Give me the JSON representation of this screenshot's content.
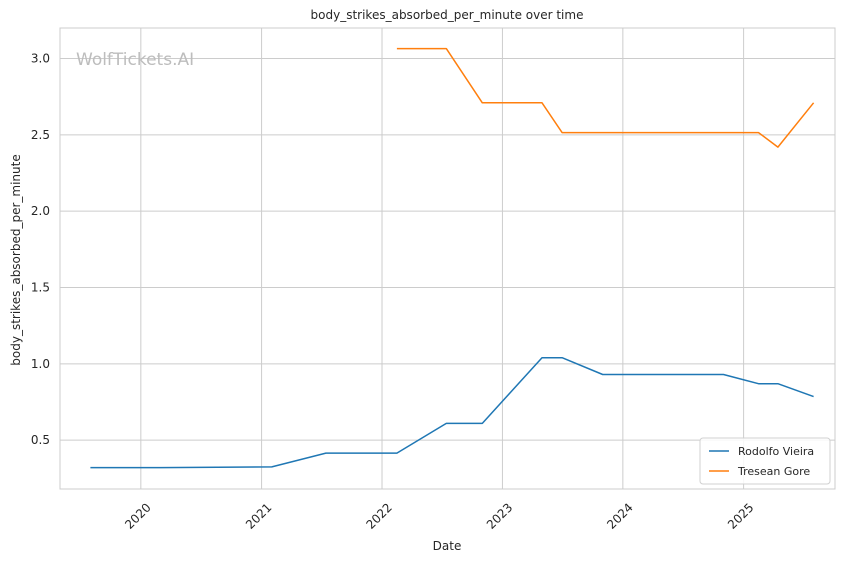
{
  "watermark": "WolfTickets.AI",
  "chart_data": {
    "type": "line",
    "title": "body_strikes_absorbed_per_minute over time",
    "xlabel": "Date",
    "ylabel": "body_strikes_absorbed_per_minute",
    "xlim": [
      "2019-05-01",
      "2025-10-05"
    ],
    "ylim": [
      0.18,
      3.2
    ],
    "x_ticks": [
      "2020",
      "2021",
      "2022",
      "2023",
      "2024",
      "2025"
    ],
    "y_ticks": [
      0.5,
      1.0,
      1.5,
      2.0,
      2.5,
      3.0
    ],
    "y_tick_labels": [
      "0.5",
      "1.0",
      "1.5",
      "2.0",
      "2.5",
      "3.0"
    ],
    "grid": true,
    "legend_position": "lower-right",
    "series": [
      {
        "name": "Rodolfo Vieira",
        "color": "#1f77b4",
        "points": [
          [
            "2019-08-01",
            0.32
          ],
          [
            "2020-03-01",
            0.32
          ],
          [
            "2021-02-01",
            0.325
          ],
          [
            "2021-07-15",
            0.415
          ],
          [
            "2022-02-15",
            0.415
          ],
          [
            "2022-07-15",
            0.61
          ],
          [
            "2022-11-01",
            0.61
          ],
          [
            "2023-05-01",
            1.04
          ],
          [
            "2023-07-01",
            1.04
          ],
          [
            "2023-11-01",
            0.93
          ],
          [
            "2024-11-01",
            0.93
          ],
          [
            "2025-02-15",
            0.87
          ],
          [
            "2025-04-15",
            0.87
          ],
          [
            "2025-08-01",
            0.785
          ]
        ]
      },
      {
        "name": "Tresean Gore",
        "color": "#ff7f0e",
        "points": [
          [
            "2022-02-15",
            3.065
          ],
          [
            "2022-07-15",
            3.065
          ],
          [
            "2022-11-01",
            2.71
          ],
          [
            "2023-05-01",
            2.71
          ],
          [
            "2023-07-01",
            2.515
          ],
          [
            "2025-02-15",
            2.515
          ],
          [
            "2025-04-15",
            2.42
          ],
          [
            "2025-08-01",
            2.71
          ]
        ]
      }
    ]
  }
}
